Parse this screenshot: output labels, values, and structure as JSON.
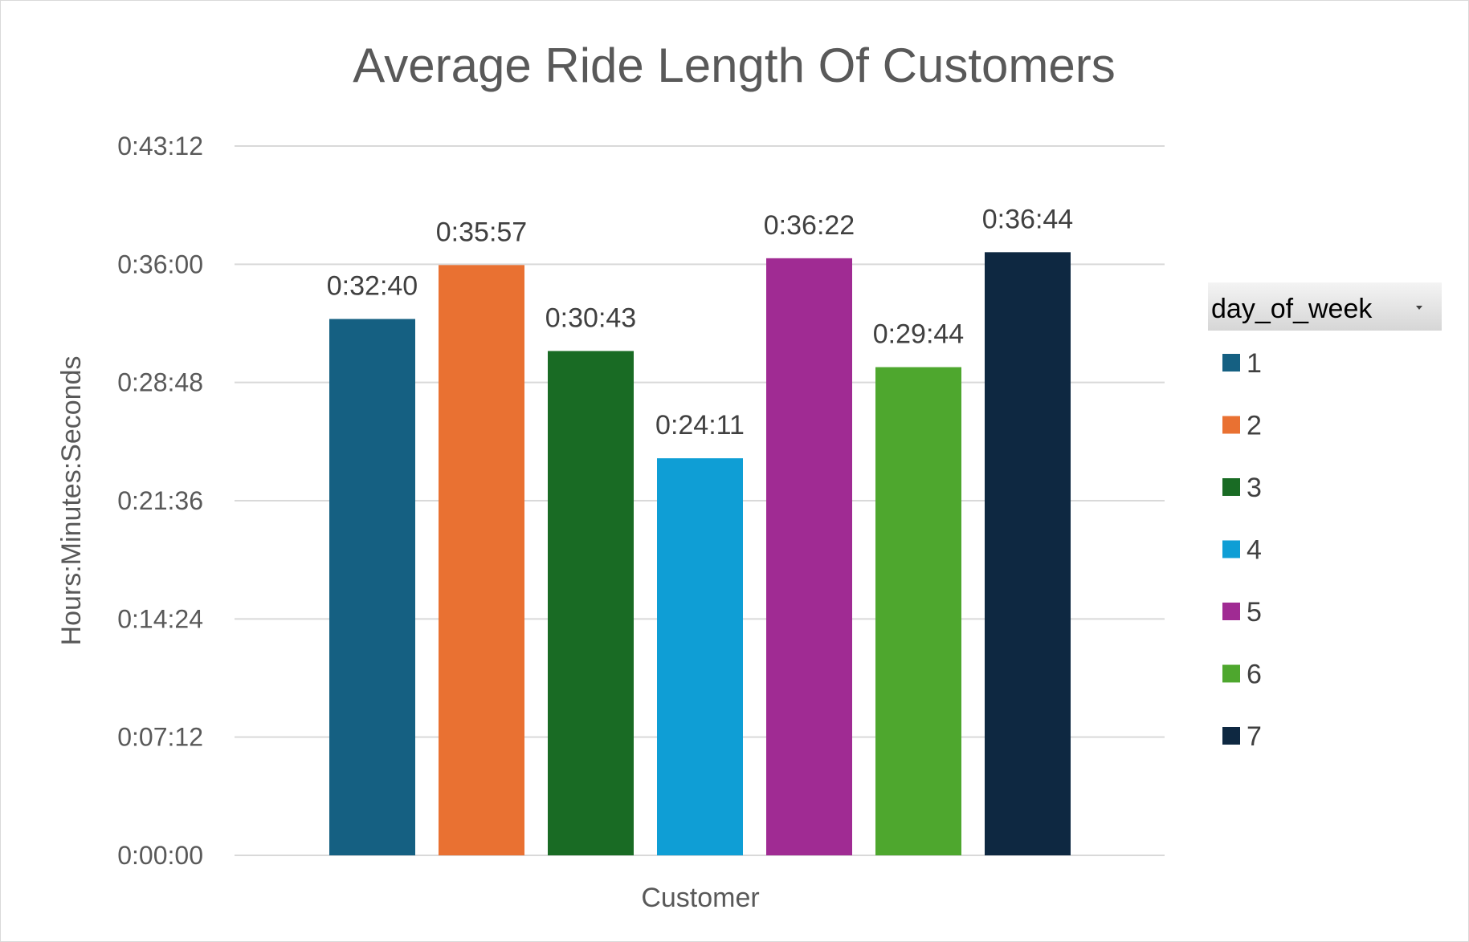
{
  "chart_data": {
    "type": "bar",
    "title": "Average Ride Length Of Customers",
    "xlabel": "Customer",
    "ylabel": "Hours:Minutes:Seconds",
    "categories": [
      "Customer"
    ],
    "ylim": [
      "0:00:00",
      "0:43:12"
    ],
    "ylim_seconds": [
      0,
      2592
    ],
    "yticks": [
      "0:00:00",
      "0:07:12",
      "0:14:24",
      "0:21:36",
      "0:28:48",
      "0:36:00",
      "0:43:12"
    ],
    "grid": true,
    "legend": {
      "title": "day_of_week",
      "placement": "right",
      "entries": [
        "1",
        "2",
        "3",
        "4",
        "5",
        "6",
        "7"
      ]
    },
    "series": [
      {
        "name": "1",
        "label": "0:32:40",
        "seconds": 1960,
        "color": "#156082"
      },
      {
        "name": "2",
        "label": "0:35:57",
        "seconds": 2157,
        "color": "#E97132"
      },
      {
        "name": "3",
        "label": "0:30:43",
        "seconds": 1843,
        "color": "#196B24"
      },
      {
        "name": "4",
        "label": "0:24:11",
        "seconds": 1451,
        "color": "#0F9ED5"
      },
      {
        "name": "5",
        "label": "0:36:22",
        "seconds": 2182,
        "color": "#A02B93"
      },
      {
        "name": "6",
        "label": "0:29:44",
        "seconds": 1784,
        "color": "#4EA72E"
      },
      {
        "name": "7",
        "label": "0:36:44",
        "seconds": 2204,
        "color": "#0E2841"
      }
    ]
  },
  "legend_dropdown_icon": "dropdown-arrow-icon"
}
